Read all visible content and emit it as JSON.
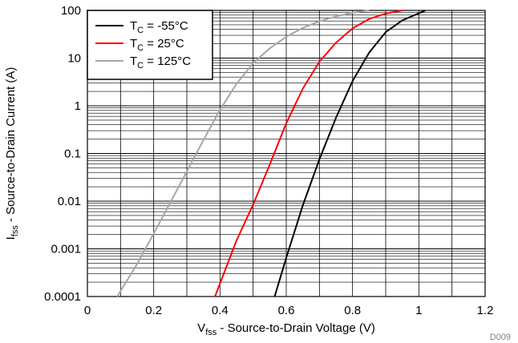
{
  "chart_data": {
    "type": "line",
    "xlabel": {
      "prefix": "V",
      "sub": "fss",
      "suffix": " - Source-to-Drain Voltage (V)"
    },
    "ylabel": {
      "prefix": "I",
      "sub": "fss",
      "suffix": " - Source-to-Drain Current (A)"
    },
    "xlim": [
      0,
      1.2
    ],
    "ylim": [
      0.0001,
      100
    ],
    "yscale": "log",
    "grid": true,
    "legend_position": "top-left",
    "x_ticks": [
      "0",
      "0.2",
      "0.4",
      "0.6",
      "0.8",
      "1",
      "1.2"
    ],
    "y_ticks": [
      "0.0001",
      "0.001",
      "0.01",
      "0.1",
      "1",
      "10",
      "100"
    ],
    "figure_code": "D009",
    "series": [
      {
        "name": {
          "prefix": "T",
          "sub": "C",
          "suffix": " = -55°C"
        },
        "color": "#000000",
        "points": [
          [
            0.565,
            0.0001
          ],
          [
            0.6,
            0.00065
          ],
          [
            0.65,
            0.0082
          ],
          [
            0.7,
            0.075
          ],
          [
            0.75,
            0.56
          ],
          [
            0.8,
            3.3
          ],
          [
            0.85,
            13
          ],
          [
            0.9,
            35
          ],
          [
            0.95,
            62
          ],
          [
            1.0,
            87
          ],
          [
            1.02,
            100
          ]
        ]
      },
      {
        "name": {
          "prefix": "T",
          "sub": "C",
          "suffix": " = 25°C"
        },
        "color": "#ff0000",
        "points": [
          [
            0.385,
            0.0001
          ],
          [
            0.45,
            0.0015
          ],
          [
            0.5,
            0.0085
          ],
          [
            0.55,
            0.058
          ],
          [
            0.6,
            0.43
          ],
          [
            0.65,
            2.3
          ],
          [
            0.7,
            8.4
          ],
          [
            0.75,
            21
          ],
          [
            0.8,
            42
          ],
          [
            0.85,
            66
          ],
          [
            0.9,
            86
          ],
          [
            0.95,
            100
          ]
        ]
      },
      {
        "name": {
          "prefix": "T",
          "sub": "C",
          "suffix": " = 125°C"
        },
        "color": "#a6a6a6",
        "points": [
          [
            0.09,
            0.0001
          ],
          [
            0.15,
            0.00048
          ],
          [
            0.2,
            0.0021
          ],
          [
            0.25,
            0.0093
          ],
          [
            0.3,
            0.042
          ],
          [
            0.35,
            0.19
          ],
          [
            0.4,
            0.82
          ],
          [
            0.45,
            2.9
          ],
          [
            0.5,
            7.8
          ],
          [
            0.55,
            16
          ],
          [
            0.6,
            28
          ],
          [
            0.65,
            43
          ],
          [
            0.7,
            59
          ],
          [
            0.75,
            75
          ],
          [
            0.8,
            89
          ],
          [
            0.85,
            100
          ]
        ]
      }
    ]
  }
}
